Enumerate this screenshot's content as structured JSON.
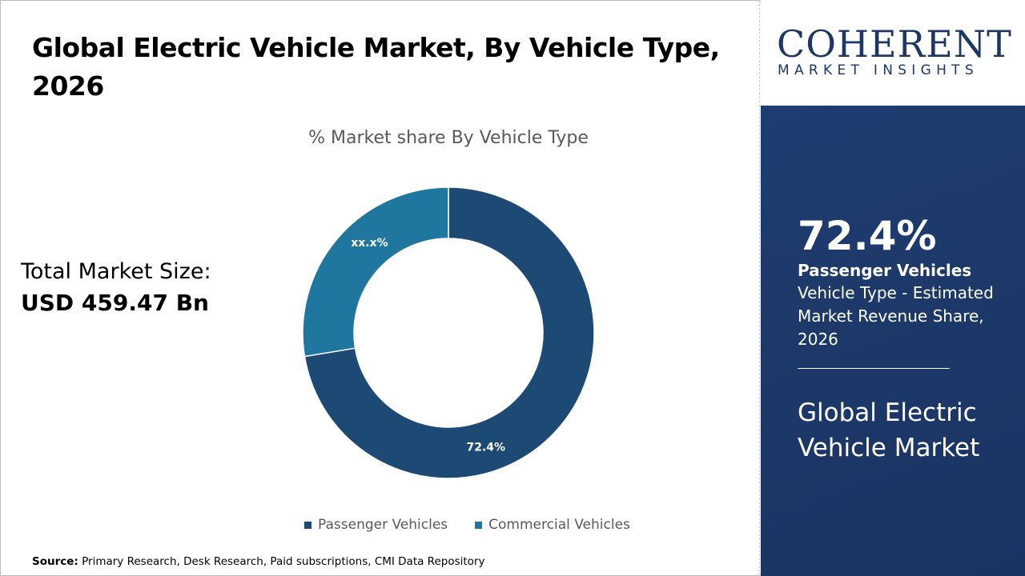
{
  "title": "Global Electric Vehicle Market, By Vehicle Type, 2026",
  "total_market": {
    "label": "Total Market Size:",
    "value": "USD 459.47 Bn"
  },
  "source": {
    "label": "Source:",
    "text": " Primary Research, Desk Research, Paid subscriptions, CMI Data Repository"
  },
  "logo": {
    "top": "COHERENT",
    "bottom": "MARKET INSIGHTS"
  },
  "panel": {
    "big_value": "72.4%",
    "segment": "Passenger Vehicles",
    "description": "Vehicle Type - Estimated Market Revenue Share, 2026",
    "market_name": "Global Electric Vehicle Market"
  },
  "colors": {
    "passenger": "#1d4a75",
    "commercial": "#1f77a0",
    "panel": "#1c3766"
  },
  "chart_data": {
    "type": "pie",
    "donut": true,
    "title": "% Market share By Vehicle Type",
    "categories": [
      "Passenger Vehicles",
      "Commercial Vehicles"
    ],
    "values": [
      72.4,
      27.6
    ],
    "data_labels": [
      "72.4%",
      "xx.x%"
    ],
    "legend_position": "bottom"
  }
}
